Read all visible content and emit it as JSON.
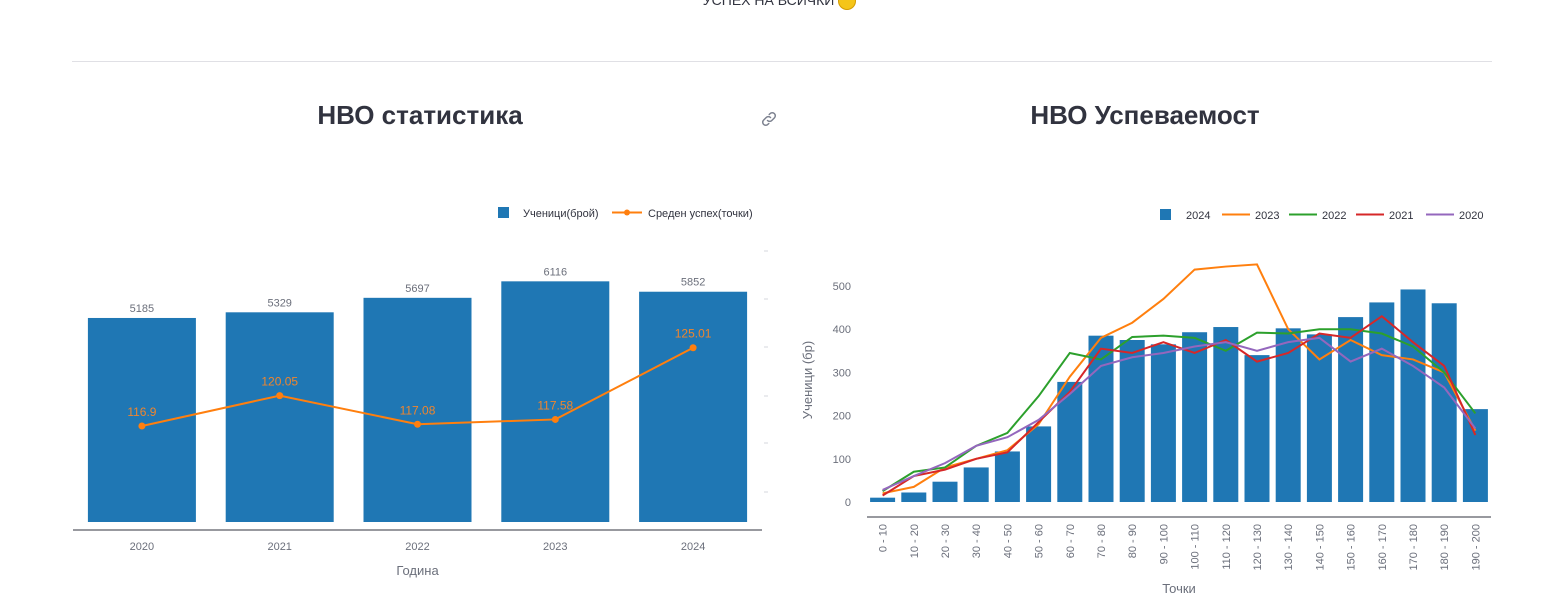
{
  "header": {
    "top_text": "УСПЕХ НА ВСИЧКИ"
  },
  "charts": {
    "left_title": "НВО статистика",
    "right_title": "НВО Успеваемост"
  },
  "colors": {
    "bar": "#1f77b4",
    "orange": "#ff7f0e",
    "green": "#2ca02c",
    "red": "#d62728",
    "purple": "#9467bd"
  },
  "icons": {
    "link": "link-icon",
    "emoji": "smiley-icon"
  },
  "chart_data": [
    {
      "type": "bar",
      "title": "НВО статистика",
      "xlabel": "Година",
      "ylabel": "",
      "categories": [
        "2020",
        "2021",
        "2022",
        "2023",
        "2024"
      ],
      "series": [
        {
          "name": "Ученици(брой)",
          "type": "bar",
          "values": [
            5185,
            5329,
            5697,
            6116,
            5852
          ]
        },
        {
          "name": "Среден успех(точки)",
          "type": "line",
          "values": [
            116.9,
            120.05,
            117.08,
            117.58,
            125.01
          ]
        }
      ],
      "legend": "top-right"
    },
    {
      "type": "bar",
      "title": "НВО Успеваемост",
      "xlabel": "Точки",
      "ylabel": "Ученици (бр)",
      "ylim": [
        0,
        550
      ],
      "yticks": [
        0,
        100,
        200,
        300,
        400,
        500
      ],
      "categories": [
        "0 - 10",
        "10 - 20",
        "20 - 30",
        "30 - 40",
        "40 - 50",
        "50 - 60",
        "60 - 70",
        "70 - 80",
        "80 - 90",
        "90 - 100",
        "100 - 110",
        "110 - 120",
        "120 - 130",
        "130 - 140",
        "140 - 150",
        "150 - 160",
        "160 - 170",
        "170 - 180",
        "180 - 190",
        "190 - 200"
      ],
      "series": [
        {
          "name": "2024",
          "type": "bar",
          "values": [
            10,
            22,
            47,
            80,
            117,
            175,
            278,
            385,
            375,
            365,
            393,
            405,
            340,
            402,
            388,
            428,
            462,
            492,
            460,
            215
          ]
        },
        {
          "name": "2023",
          "type": "line",
          "values": [
            20,
            35,
            80,
            100,
            120,
            180,
            290,
            380,
            415,
            470,
            538,
            545,
            550,
            400,
            330,
            375,
            340,
            330,
            300,
            165
          ]
        },
        {
          "name": "2022",
          "type": "line",
          "values": [
            25,
            70,
            80,
            130,
            160,
            245,
            345,
            330,
            382,
            385,
            380,
            350,
            392,
            390,
            400,
            400,
            390,
            360,
            300,
            205
          ]
        },
        {
          "name": "2021",
          "type": "line",
          "values": [
            15,
            60,
            75,
            100,
            115,
            185,
            255,
            355,
            345,
            370,
            345,
            375,
            325,
            345,
            390,
            380,
            430,
            370,
            315,
            155
          ]
        },
        {
          "name": "2020",
          "type": "line",
          "values": [
            28,
            60,
            90,
            130,
            150,
            190,
            250,
            315,
            335,
            345,
            360,
            370,
            350,
            370,
            380,
            325,
            355,
            315,
            265,
            170
          ]
        }
      ],
      "legend": "top-right"
    }
  ]
}
